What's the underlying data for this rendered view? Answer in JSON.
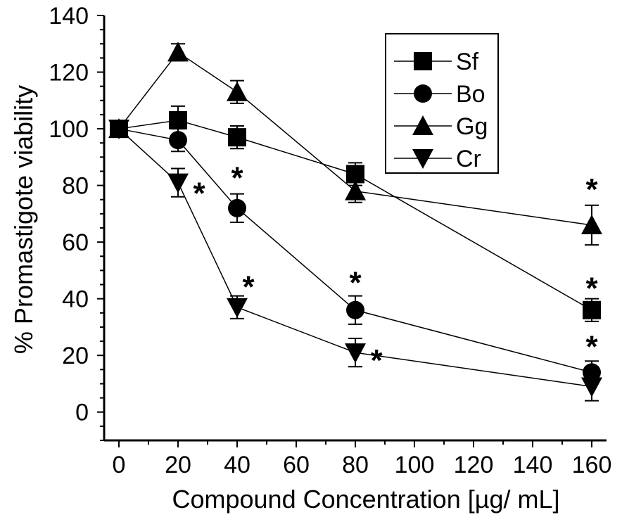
{
  "chart_data": {
    "type": "line",
    "title": "",
    "xlabel": "Compound Concentration [µg/ mL]",
    "ylabel": "% Promastigote viability",
    "xlim": [
      -5,
      165
    ],
    "ylim": [
      -10,
      140
    ],
    "x_ticks": [
      0,
      20,
      40,
      60,
      80,
      100,
      120,
      140,
      160
    ],
    "y_ticks": [
      0,
      20,
      40,
      60,
      80,
      100,
      120,
      140
    ],
    "x_tick_labels": [
      "0",
      "20",
      "40",
      "60",
      "80",
      "100",
      "120",
      "140",
      "160"
    ],
    "y_tick_labels": [
      "0",
      "20",
      "40",
      "60",
      "80",
      "100",
      "120",
      "140"
    ],
    "x": [
      0,
      20,
      40,
      80,
      160
    ],
    "legend_position": "top-right",
    "series": [
      {
        "name": "Sf",
        "marker": "square",
        "values": [
          100,
          103,
          97,
          84,
          36
        ],
        "errors": [
          2,
          5,
          4,
          4,
          4
        ],
        "significant": [
          false,
          false,
          false,
          false,
          true
        ]
      },
      {
        "name": "Bo",
        "marker": "circle",
        "values": [
          100,
          96,
          72,
          36,
          14
        ],
        "errors": [
          2,
          4,
          5,
          5,
          4
        ],
        "significant": [
          false,
          false,
          true,
          true,
          true
        ]
      },
      {
        "name": "Gg",
        "marker": "triangle-up",
        "values": [
          100,
          127,
          113,
          78,
          66
        ],
        "errors": [
          2,
          3,
          4,
          4,
          7
        ],
        "significant": [
          false,
          false,
          false,
          false,
          true
        ]
      },
      {
        "name": "Cr",
        "marker": "triangle-down",
        "values": [
          100,
          81,
          37,
          21,
          9
        ],
        "errors": [
          2,
          5,
          4,
          5,
          5
        ],
        "significant": [
          false,
          true,
          true,
          true,
          false
        ]
      }
    ],
    "significance_marker": "*"
  }
}
